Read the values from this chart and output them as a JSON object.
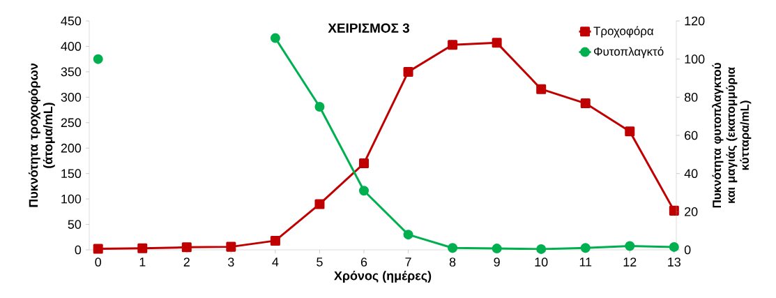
{
  "chart_data": {
    "type": "line",
    "title": "ΧΕΙΡΙΣΜΟΣ 3",
    "xlabel": "Χρόνος (ημέρες)",
    "ylabel": "Πυκνότητα τροχοφόρων (άτομα/mL)",
    "y2label": "Πυκνότητα φυτοπλαγκτού και μαγιάς (εκατομμύρια κύτταρα/mL)",
    "x": [
      0,
      1,
      2,
      3,
      4,
      5,
      6,
      7,
      8,
      9,
      10,
      11,
      12,
      13
    ],
    "xlim": [
      -0.2,
      13.05
    ],
    "xticks": [
      0,
      1,
      2,
      3,
      4,
      5,
      6,
      7,
      8,
      9,
      10,
      11,
      12,
      13
    ],
    "ylim": [
      0,
      450
    ],
    "yticks": [
      0,
      50,
      100,
      150,
      200,
      250,
      300,
      350,
      400,
      450
    ],
    "y2lim": [
      0,
      120
    ],
    "y2ticks": [
      0,
      20,
      40,
      60,
      80,
      100,
      120
    ],
    "series": [
      {
        "name": "Τροχοφόρα",
        "color": "#c00000",
        "marker": "square",
        "values": [
          2,
          3,
          5,
          6,
          18,
          90,
          170,
          350,
          403,
          407,
          316,
          288,
          233,
          77
        ]
      },
      {
        "name": "Φυτοπλαγκτό",
        "color": "#00b050",
        "marker": "circle",
        "axis": "y2",
        "values": [
          100,
          null,
          null,
          null,
          111,
          75,
          31,
          8,
          1,
          0.7,
          0.4,
          1,
          2,
          1.5
        ]
      }
    ],
    "legend": "top right",
    "grid": false,
    "line_style": "solid"
  }
}
